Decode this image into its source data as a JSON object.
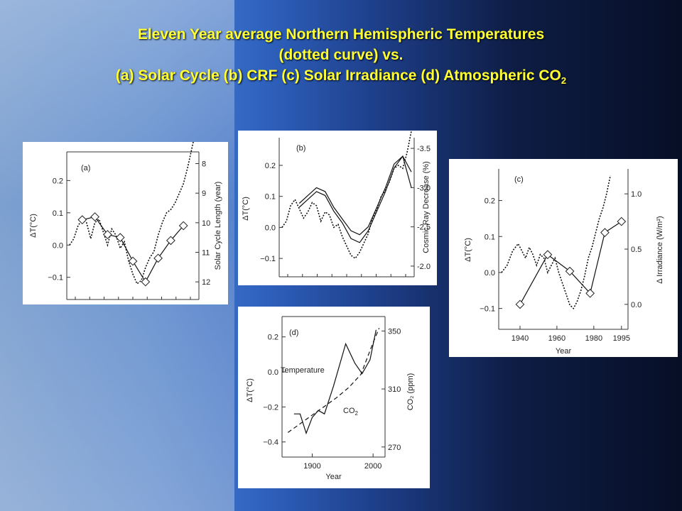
{
  "title": {
    "line1": "Eleven Year average Northern Hemispheric Temperatures",
    "line2": "(dotted curve) vs.",
    "line3_main": "(a) Solar Cycle (b) CRF (c) Solar Irradiance (d) Atmospheric CO",
    "line3_sub": "2"
  },
  "chart_data": [
    {
      "id": "a",
      "type": "line",
      "panel_label": "(a)",
      "ylabel": "ΔT(°C)",
      "y2label": "Solar Cycle Length (year)",
      "ylim": [
        -0.16,
        0.28
      ],
      "y2lim": [
        12.5,
        7.7
      ],
      "y2_reversed": true,
      "yticks": [
        "0.2",
        "0.1",
        "0.0",
        "−0.1"
      ],
      "y2ticks": [
        "8",
        "9",
        "10",
        "11",
        "12"
      ],
      "series": [
        {
          "style": "dotted",
          "x": [
            0,
            1,
            2,
            3,
            4,
            5,
            6,
            7,
            8,
            9,
            10,
            11,
            12,
            13,
            14,
            15,
            16,
            17,
            18,
            19,
            20,
            21,
            22,
            23,
            24,
            25,
            26,
            27,
            28,
            29,
            30
          ],
          "values": [
            0.0,
            0.02,
            0.06,
            0.08,
            0.07,
            0.02,
            0.07,
            0.08,
            0.04,
            0.0,
            0.05,
            0.03,
            -0.01,
            0.01,
            -0.05,
            -0.09,
            -0.12,
            -0.11,
            -0.07,
            -0.04,
            -0.02,
            0.03,
            0.07,
            0.1,
            0.11,
            0.13,
            0.16,
            0.19,
            0.24,
            0.3,
            0.36
          ]
        },
        {
          "style": "marked-solid",
          "x": [
            3,
            6,
            9,
            12,
            15,
            18,
            21,
            24,
            27
          ],
          "values2": [
            9.9,
            9.8,
            10.4,
            10.5,
            11.3,
            12.0,
            11.2,
            10.6,
            10.1
          ]
        }
      ]
    },
    {
      "id": "b",
      "type": "line",
      "panel_label": "(b)",
      "ylabel": "ΔT(°C)",
      "y2label": "Cosmic Ray Decrease (%)",
      "ylim": [
        -0.15,
        0.28
      ],
      "y2lim": [
        -1.9,
        -3.6
      ],
      "y2_reversed": true,
      "yticks": [
        "0.2",
        "0.1",
        "0.0",
        "−0.1"
      ],
      "y2ticks": [
        "-3.5",
        "-3.0",
        "-2.5",
        "-2.0"
      ],
      "series": [
        {
          "style": "dotted",
          "x": [
            0,
            1,
            2,
            3,
            4,
            5,
            6,
            7,
            8,
            9,
            10,
            11,
            12,
            13,
            14,
            15,
            16,
            17,
            18,
            19,
            20,
            21,
            22,
            23,
            24,
            25,
            26,
            27,
            28,
            29,
            30
          ],
          "values": [
            0.0,
            0.02,
            0.07,
            0.09,
            0.06,
            0.03,
            0.05,
            0.08,
            0.07,
            0.02,
            0.05,
            0.04,
            0.0,
            0.01,
            -0.03,
            -0.06,
            -0.09,
            -0.1,
            -0.08,
            -0.05,
            -0.02,
            0.03,
            0.06,
            0.1,
            0.12,
            0.15,
            0.19,
            0.2,
            0.19,
            0.24,
            0.31
          ]
        },
        {
          "style": "solid",
          "x": [
            4,
            6,
            8,
            10,
            12,
            14,
            16,
            18,
            20,
            22,
            24,
            26,
            28,
            30
          ],
          "values2": [
            -2.8,
            -2.9,
            -3.0,
            -2.95,
            -2.75,
            -2.6,
            -2.45,
            -2.4,
            -2.5,
            -2.75,
            -3.0,
            -3.3,
            -3.4,
            -3.0
          ]
        },
        {
          "style": "solid",
          "x": [
            4,
            6,
            8,
            10,
            12,
            14,
            16,
            18,
            20,
            22,
            24,
            26,
            28,
            30
          ],
          "values2": [
            -2.75,
            -2.85,
            -2.95,
            -2.9,
            -2.7,
            -2.55,
            -2.35,
            -2.3,
            -2.45,
            -2.7,
            -2.95,
            -3.25,
            -3.4,
            -3.2
          ]
        }
      ]
    },
    {
      "id": "c",
      "type": "line",
      "panel_label": "(c)",
      "ylabel": "ΔT(°C)",
      "y2label": "Δ Irradiance (W/m²)",
      "xlabel": "Year",
      "xlim": [
        1930,
        1997
      ],
      "xticks": [
        "1940",
        "1960",
        "1980",
        "1995"
      ],
      "ylim": [
        -0.15,
        0.28
      ],
      "y2lim": [
        -0.2,
        1.2
      ],
      "yticks": [
        "0.2",
        "0.1",
        "0.0",
        "−0.1"
      ],
      "y2ticks": [
        "1.0",
        "0.5",
        "0.0"
      ],
      "series": [
        {
          "style": "dotted",
          "x": [
            1930,
            1933,
            1936,
            1939,
            1941,
            1943,
            1945,
            1947,
            1949,
            1951,
            1953,
            1955,
            1957,
            1959,
            1961,
            1963,
            1965,
            1967,
            1969,
            1971,
            1973,
            1975,
            1977,
            1979,
            1981,
            1983,
            1985,
            1987,
            1989
          ],
          "values": [
            0.0,
            0.02,
            0.06,
            0.08,
            0.06,
            0.04,
            0.07,
            0.05,
            0.02,
            0.05,
            0.04,
            0.0,
            0.02,
            0.04,
            0.0,
            -0.03,
            -0.06,
            -0.09,
            -0.1,
            -0.08,
            -0.05,
            -0.01,
            0.04,
            0.07,
            0.11,
            0.15,
            0.18,
            0.22,
            0.27
          ]
        },
        {
          "style": "marked-solid",
          "x": [
            1940,
            1955,
            1967,
            1978,
            1986,
            1995
          ],
          "values2": [
            0.0,
            0.45,
            0.3,
            0.1,
            0.65,
            0.75
          ]
        }
      ]
    },
    {
      "id": "d",
      "type": "line",
      "panel_label": "(d)",
      "ylabel": "ΔT(°C)",
      "y2label": "CO₂ (ppm)",
      "xlabel": "Year",
      "xlim": [
        1855,
        2015
      ],
      "xticks": [
        "1900",
        "2000"
      ],
      "ylim": [
        -0.47,
        0.3
      ],
      "y2lim": [
        265,
        358
      ],
      "yticks": [
        "0.2",
        "0.0",
        "−0.2",
        "−0.4"
      ],
      "y2ticks": [
        "350",
        "310",
        "270"
      ],
      "annotations": [
        "Temperature",
        "CO2"
      ],
      "series": [
        {
          "name": "Temperature",
          "style": "solid",
          "x": [
            1870,
            1880,
            1890,
            1900,
            1910,
            1920,
            1935,
            1955,
            1970,
            1982,
            1995,
            2005
          ],
          "values": [
            -0.24,
            -0.24,
            -0.35,
            -0.26,
            -0.22,
            -0.24,
            -0.08,
            0.16,
            0.05,
            -0.01,
            0.07,
            0.24
          ]
        },
        {
          "name": "CO2",
          "style": "dashed",
          "x": [
            1860,
            1880,
            1900,
            1920,
            1940,
            1960,
            1980,
            2000,
            2010
          ],
          "values2": [
            280,
            286,
            292,
            298,
            304,
            311,
            320,
            342,
            352
          ]
        }
      ]
    }
  ]
}
